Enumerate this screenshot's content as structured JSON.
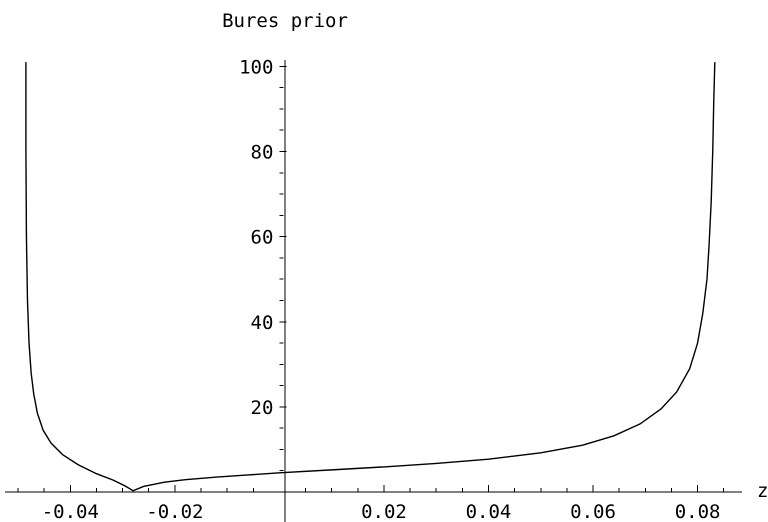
{
  "chart_data": {
    "type": "line",
    "title": "Bures prior",
    "xlabel": "z",
    "ylabel": "",
    "xlim": [
      -0.0525,
      0.0885
    ],
    "ylim": [
      0,
      101.5
    ],
    "x_ticks": [
      -0.04,
      -0.02,
      0.02,
      0.04,
      0.06,
      0.08
    ],
    "x_tick_labels": [
      "-0.04",
      "-0.02",
      "0.02",
      "0.04",
      "0.06",
      "0.08"
    ],
    "y_ticks": [
      20,
      40,
      60,
      80,
      100
    ],
    "y_tick_labels": [
      "20",
      "40",
      "60",
      "80",
      "100"
    ],
    "grid": false,
    "series": [
      {
        "x": [
          -0.0485,
          -0.0485,
          -0.0484,
          -0.0482,
          -0.0479,
          -0.0475,
          -0.047,
          -0.0463,
          -0.0452,
          -0.0437,
          -0.0415,
          -0.0385,
          -0.035,
          -0.0318,
          -0.0295,
          -0.028,
          -0.026,
          -0.022,
          -0.018,
          -0.012,
          -0.006,
          0.0,
          0.01,
          0.02,
          0.03,
          0.04,
          0.05,
          0.058,
          0.064,
          0.069,
          0.073,
          0.076,
          0.0785,
          0.08,
          0.081,
          0.0818,
          0.0822,
          0.0826,
          0.0829,
          0.0831,
          0.0833
        ],
        "y": [
          101,
          80,
          60,
          45,
          35,
          28,
          23,
          18.5,
          14.5,
          11.5,
          8.8,
          6.4,
          4.3,
          2.8,
          1.4,
          0.3,
          1.3,
          2.3,
          2.9,
          3.5,
          4.0,
          4.5,
          5.2,
          5.9,
          6.7,
          7.7,
          9.2,
          11.0,
          13.2,
          16.0,
          19.5,
          23.5,
          29,
          35,
          42,
          50,
          58,
          68,
          80,
          92,
          101
        ]
      }
    ]
  }
}
